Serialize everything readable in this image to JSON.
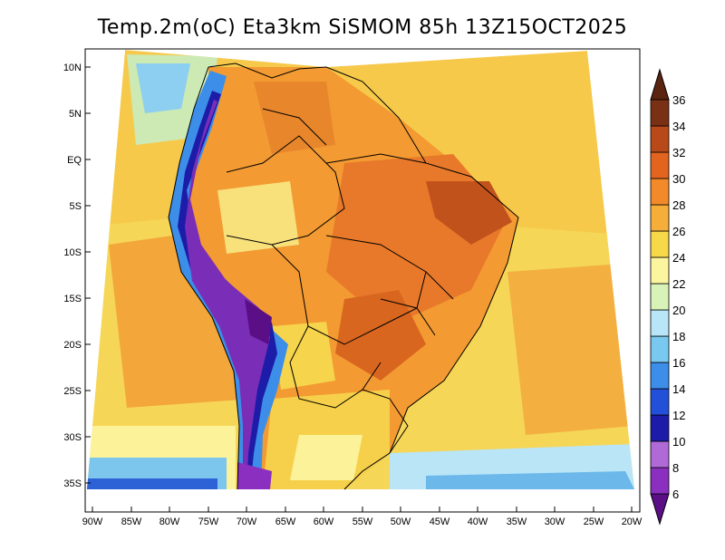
{
  "title": "Temp.2m(oC) Eta3km SiSMOM 85h 13Z15OCT2025",
  "map": {
    "lat_labels": [
      "10N",
      "5N",
      "EQ",
      "5S",
      "10S",
      "15S",
      "20S",
      "25S",
      "30S",
      "35S"
    ],
    "lon_labels": [
      "90W",
      "85W",
      "80W",
      "75W",
      "70W",
      "65W",
      "60W",
      "55W",
      "50W",
      "45W",
      "40W",
      "35W",
      "30W",
      "25W",
      "20W"
    ]
  },
  "colorbar": {
    "levels": [
      "6",
      "8",
      "10",
      "12",
      "14",
      "16",
      "18",
      "20",
      "22",
      "24",
      "26",
      "28",
      "30",
      "32",
      "34",
      "36"
    ],
    "colors": [
      "#5a0f86",
      "#8a2fbf",
      "#b06ad8",
      "#1c1ca8",
      "#2250d8",
      "#3c8ee8",
      "#78c8f0",
      "#b8e6f8",
      "#d8f2b8",
      "#fbf5a0",
      "#f6d848",
      "#f6ae3a",
      "#f28a2a",
      "#e2641e",
      "#b84a1a",
      "#7a3014",
      "#5a2410"
    ]
  }
}
